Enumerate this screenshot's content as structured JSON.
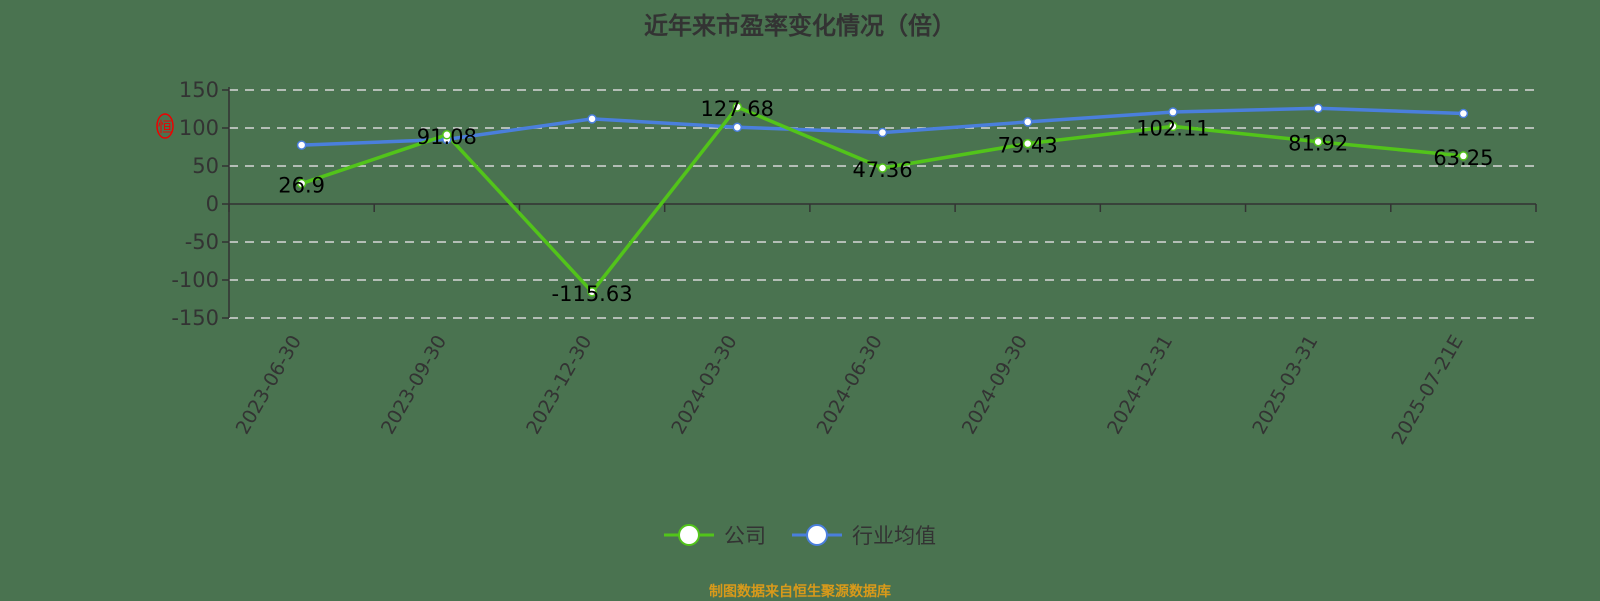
{
  "chart_data": {
    "type": "line",
    "title": "近年来市盈率变化情况（倍）",
    "xlabel": "",
    "ylabel": "",
    "categories": [
      "2023-06-30",
      "2023-09-30",
      "2023-12-30",
      "2024-03-30",
      "2024-06-30",
      "2024-09-30",
      "2024-12-31",
      "2025-03-31",
      "2025-07-21E"
    ],
    "series": [
      {
        "name": "公司",
        "color": "#52c41a",
        "values": [
          26.9,
          91.08,
          -115.63,
          127.68,
          47.36,
          79.43,
          102.11,
          81.92,
          63.25
        ],
        "labels": [
          "26.9",
          "91.08",
          "-115.63",
          "127.68",
          "47.36",
          "79.43",
          "102.11",
          "81.92",
          "63.25"
        ]
      },
      {
        "name": "行业均值",
        "color": "#4a7fdc",
        "values": [
          77.5,
          85,
          112,
          101,
          94,
          108,
          121,
          126,
          119
        ]
      }
    ],
    "ylim": [
      -150,
      150
    ],
    "yticks": [
      "150",
      "100",
      "50",
      "0",
      "-50",
      "-100",
      "-150"
    ],
    "ytick_values": [
      150,
      100,
      50,
      0,
      -50,
      -100,
      -150
    ],
    "grid": true,
    "legend_position": "bottom"
  },
  "legend": {
    "company": "公司",
    "industry": "行业均值"
  },
  "source": "制图数据来自恒生聚源数据库",
  "watermark": "恒"
}
